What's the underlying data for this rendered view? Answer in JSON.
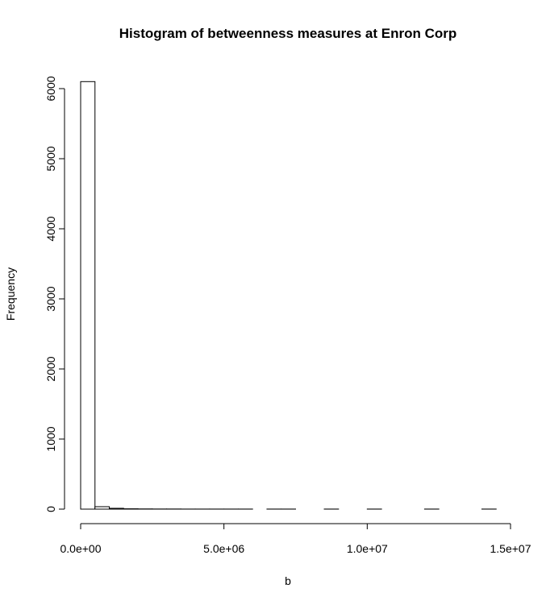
{
  "chart_data": {
    "type": "bar",
    "title": "Histogram of betweenness measures at Enron Corp",
    "xlabel": "b",
    "ylabel": "Frequency",
    "xlim": [
      0,
      15000000
    ],
    "ylim": [
      0,
      6100
    ],
    "x_ticks": [
      0,
      5000000,
      10000000,
      15000000
    ],
    "x_tick_labels": [
      "0.0e+00",
      "5.0e+06",
      "1.0e+07",
      "1.5e+07"
    ],
    "y_ticks": [
      0,
      1000,
      2000,
      3000,
      4000,
      5000,
      6000
    ],
    "y_tick_labels": [
      "0",
      "1000",
      "2000",
      "3000",
      "4000",
      "5000",
      "6000"
    ],
    "bin_width": 500000,
    "bin_start": 0,
    "bin_end": 14500000,
    "values": [
      6100,
      35,
      12,
      5,
      3,
      2,
      2,
      1,
      1,
      1,
      1,
      1,
      0,
      1,
      1,
      0,
      0,
      1,
      0,
      0,
      1,
      0,
      0,
      0,
      1,
      0,
      0,
      0,
      1
    ],
    "grid": false,
    "legend": false
  }
}
